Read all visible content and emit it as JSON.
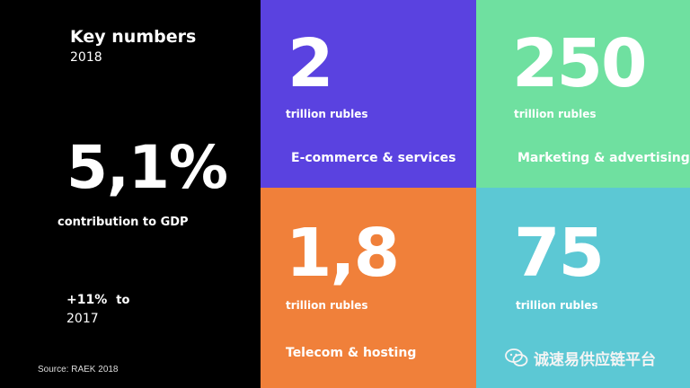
{
  "left": {
    "title": "Key numbers",
    "year": "2018",
    "gdp_percent": "5,1%",
    "gdp_label": "contribution to GDP",
    "growth": "+11%",
    "growth_to": "to",
    "growth_year": "2017",
    "source": "Source: RAEK 2018"
  },
  "tiles": {
    "ecommerce": {
      "value": "2",
      "unit": "trillion rubles",
      "category": "E-commerce & services",
      "color": "#5a42e0"
    },
    "marketing": {
      "value": "250",
      "unit": "trillion rubles",
      "category": "Marketing & advertising",
      "color": "#6fe0a0"
    },
    "telecom": {
      "value": "1,8",
      "unit": "trillion rubles",
      "category": "Telecom & hosting",
      "color": "#f0803a"
    },
    "fourth": {
      "value": "75",
      "unit": "trillion rubles",
      "color": "#5cc8d4"
    }
  },
  "watermark": {
    "text": "诚速易供应链平台",
    "icon": "wechat-icon"
  }
}
